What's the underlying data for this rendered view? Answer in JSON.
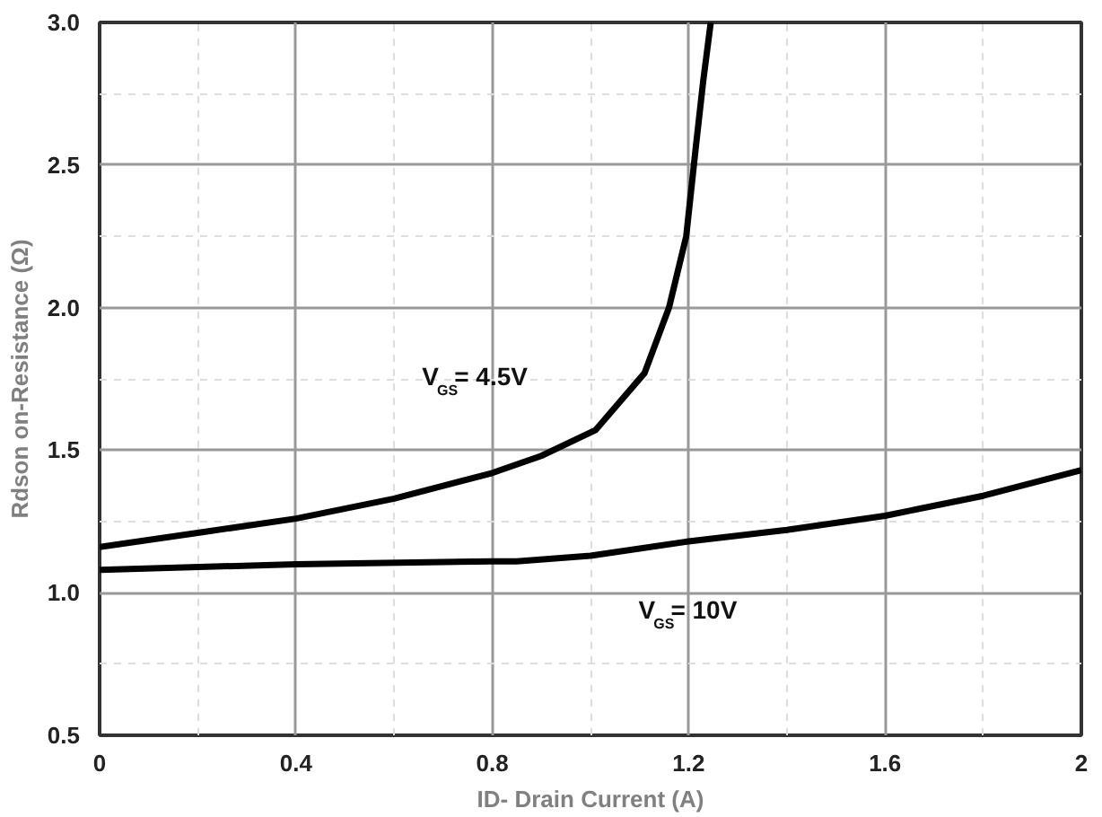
{
  "chart_data": {
    "type": "line",
    "xlabel": "ID- Drain Current (A)",
    "ylabel": "Rdson on-Resistance (Ω)",
    "xlim": [
      0,
      2
    ],
    "ylim": [
      0.5,
      3.0
    ],
    "xticks": [
      0,
      0.4,
      0.8,
      1.2,
      1.6,
      2
    ],
    "yticks": [
      0.5,
      {
        "value": 1,
        "label": "1.0"
      },
      1.5,
      {
        "value": 2,
        "label": "2.0"
      },
      2.5,
      {
        "value": 3,
        "label": "3.0"
      }
    ],
    "grid": true,
    "line_style": "solid",
    "series": [
      {
        "name": "V$_{GS}$= 4.5V",
        "color": "#000000",
        "x": [
          0,
          0.2,
          0.4,
          0.6,
          0.8,
          0.9,
          1.01,
          1.11,
          1.16,
          1.195,
          1.215,
          1.23,
          1.245
        ],
        "values": [
          1.16,
          1.21,
          1.26,
          1.33,
          1.42,
          1.48,
          1.57,
          1.77,
          2.0,
          2.25,
          2.57,
          2.8,
          3.0
        ]
      },
      {
        "name": "V$_{GS}$= 10V",
        "color": "#000000",
        "x": [
          0,
          0.4,
          0.8,
          0.85,
          1.0,
          1.2,
          1.4,
          1.6,
          1.8,
          2.0
        ],
        "values": [
          1.08,
          1.1,
          1.11,
          1.11,
          1.13,
          1.18,
          1.22,
          1.27,
          1.34,
          1.43
        ]
      }
    ]
  }
}
